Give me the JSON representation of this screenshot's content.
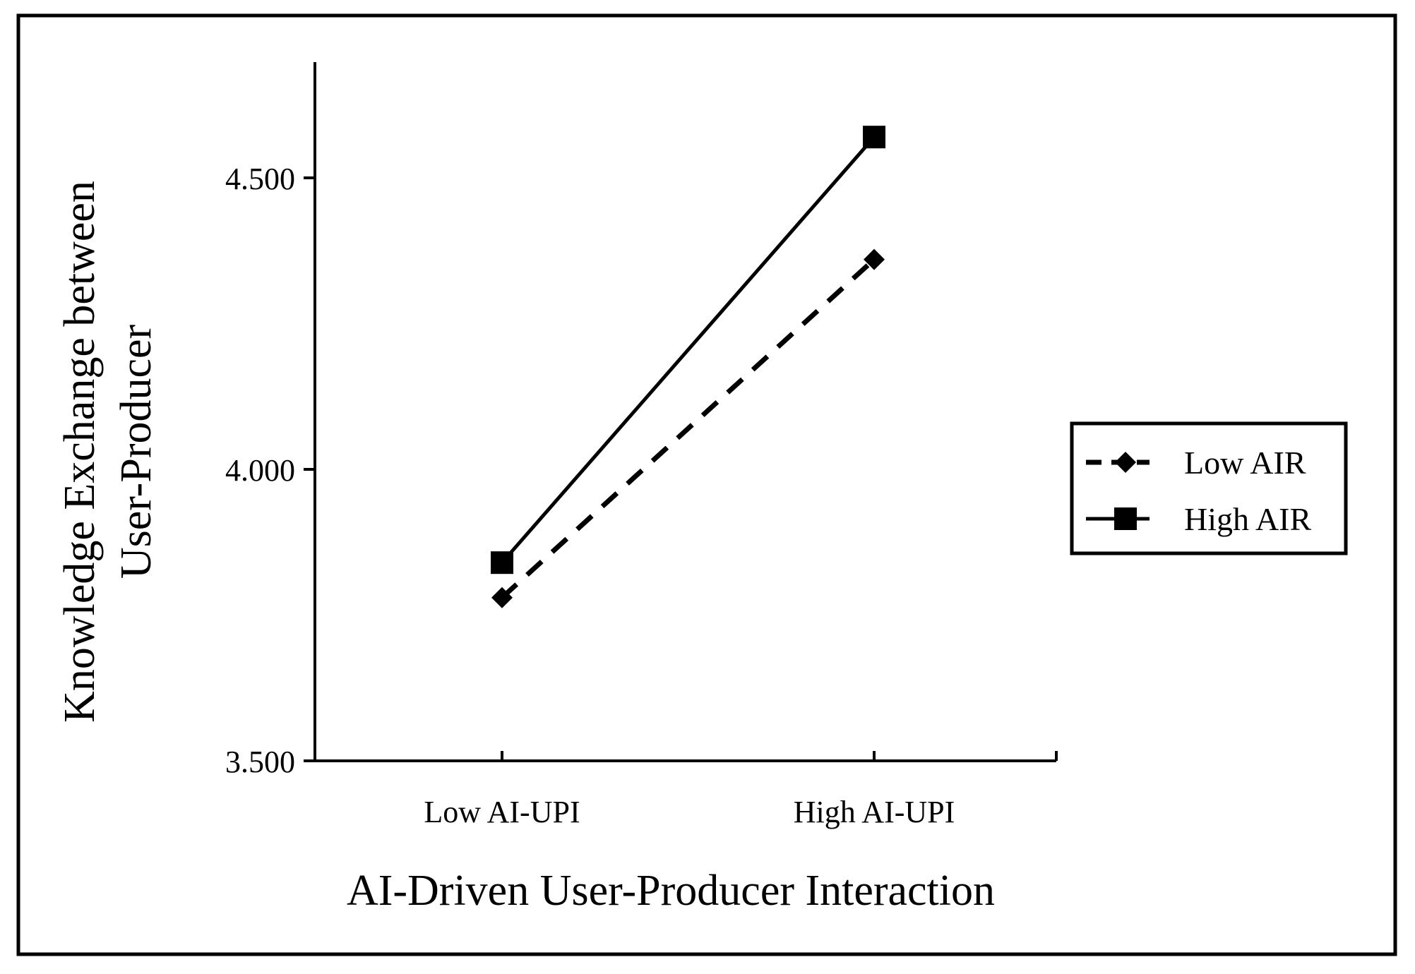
{
  "chart_data": {
    "type": "line",
    "title": "",
    "xlabel": "AI-Driven User-Producer Interaction",
    "ylabel_lines": [
      "Knowledge Exchange between",
      "User-Producer"
    ],
    "categories": [
      "Low AI-UPI",
      "High AI-UPI"
    ],
    "ylim": [
      3.5,
      4.7
    ],
    "yticks": [
      3.5,
      4.0,
      4.5
    ],
    "ytick_labels": [
      "3.500",
      "4.000",
      "4.500"
    ],
    "grid": false,
    "legend_position": "right",
    "series": [
      {
        "name": "Low AIR",
        "values": [
          3.78,
          4.36
        ],
        "line_style": "dashed",
        "marker": "diamond",
        "color": "#000000"
      },
      {
        "name": "High AIR",
        "values": [
          3.84,
          4.57
        ],
        "line_style": "solid",
        "marker": "square",
        "color": "#000000"
      }
    ]
  }
}
